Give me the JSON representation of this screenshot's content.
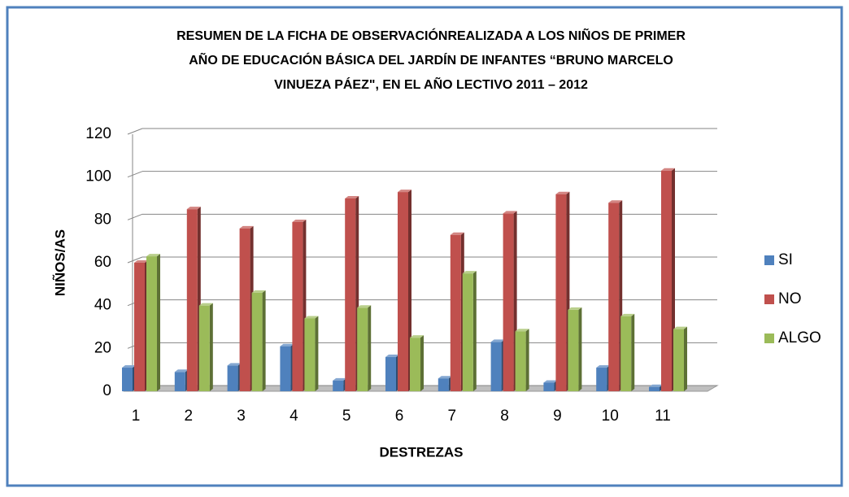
{
  "chart_data": {
    "type": "bar3d",
    "title": [
      "RESUMEN DE LA FICHA DE OBSERVACIÓNREALIZADA  A LOS NIÑOS  DE PRIMER",
      "AÑO DE EDUCACIÓN BÁSICA DEL  JARDÍN DE INFANTES  “BRUNO MARCELO",
      "VINUEZA PÁEZ\", EN EL  AÑO LECTIVO 2011 – 2012"
    ],
    "x_label": "DESTREZAS",
    "y_label": "NIÑOS/AS",
    "categories": [
      "1",
      "2",
      "3",
      "4",
      "5",
      "6",
      "7",
      "8",
      "9",
      "10",
      "11"
    ],
    "series": [
      {
        "name": "SI",
        "color": "#4f81bd",
        "values": [
          11,
          9,
          12,
          21,
          5,
          16,
          6,
          23,
          4,
          11,
          2
        ]
      },
      {
        "name": "NO",
        "color": "#c0504d",
        "values": [
          60,
          85,
          76,
          79,
          90,
          93,
          73,
          83,
          92,
          88,
          103
        ]
      },
      {
        "name": "ALGO",
        "color": "#9bbb59",
        "values": [
          63,
          40,
          46,
          34,
          39,
          25,
          55,
          28,
          38,
          35,
          29
        ]
      }
    ],
    "ylim": [
      0,
      120
    ],
    "yticks": [
      0,
      20,
      40,
      60,
      80,
      100,
      120
    ],
    "grid": true,
    "legend": "right"
  }
}
